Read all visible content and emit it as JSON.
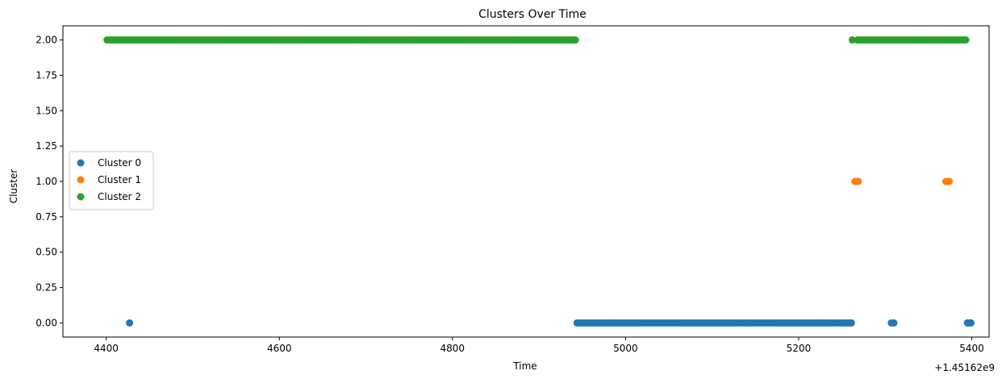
{
  "chart_data": {
    "type": "scatter",
    "title": "Clusters Over Time",
    "xlabel": "Time",
    "ylabel": "Cluster",
    "x_offset_label": "+1.45162e9",
    "xlim": [
      4350,
      5420
    ],
    "ylim": [
      -0.1,
      2.1
    ],
    "xticks": [
      4400,
      4600,
      4800,
      5000,
      5200,
      5400
    ],
    "xtick_labels": [
      "4400",
      "4600",
      "4800",
      "5000",
      "5200",
      "5400"
    ],
    "yticks": [
      0.0,
      0.25,
      0.5,
      0.75,
      1.0,
      1.25,
      1.5,
      1.75,
      2.0
    ],
    "ytick_labels": [
      "0.00",
      "0.25",
      "0.50",
      "0.75",
      "1.00",
      "1.25",
      "1.50",
      "1.75",
      "2.00"
    ],
    "grid": false,
    "legend_position": "center-left",
    "series": [
      {
        "name": "Cluster 0",
        "color": "#1f77b4",
        "y": 0,
        "ranges": [
          [
            4427,
            4427
          ],
          [
            4944,
            5261
          ],
          [
            5307,
            5310
          ],
          [
            5395,
            5399
          ]
        ]
      },
      {
        "name": "Cluster 1",
        "color": "#ff7f0e",
        "y": 1,
        "ranges": [
          [
            5265,
            5269
          ],
          [
            5370,
            5374
          ]
        ]
      },
      {
        "name": "Cluster 2",
        "color": "#2ca02c",
        "y": 2,
        "ranges": [
          [
            4401,
            4942
          ],
          [
            5262,
            5262
          ],
          [
            5268,
            5393
          ]
        ]
      }
    ]
  }
}
